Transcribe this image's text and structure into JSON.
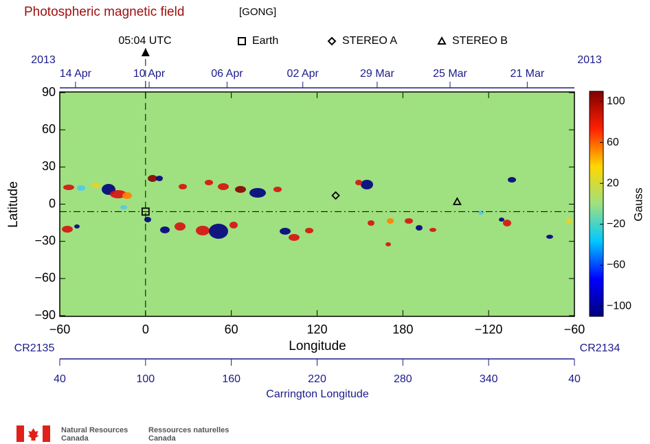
{
  "title": "Photospheric magnetic field",
  "source": "[GONG]",
  "chart_data": {
    "type": "heatmap",
    "x_label": "Longitude",
    "y_label": "Latitude",
    "time_label": "05:04 UTC",
    "xlim": [
      -60,
      300
    ],
    "xticks": [
      {
        "value": -60,
        "label": "−60"
      },
      0,
      60,
      120,
      180,
      {
        "value": 240,
        "label": "−120"
      },
      {
        "value": 300,
        "label": "−60"
      }
    ],
    "ylim": [
      -90,
      90
    ],
    "yticks": [
      90,
      60,
      30,
      0,
      {
        "value": -30,
        "label": "−30"
      },
      {
        "value": -60,
        "label": "−60"
      },
      {
        "value": -90,
        "label": "−90"
      }
    ],
    "date_axis": {
      "year_left": "2013",
      "year_right": "2013",
      "ticks": [
        {
          "value": -49,
          "label": "14 Apr"
        },
        {
          "value": 2.5,
          "label": "10 Apr"
        },
        {
          "value": 57,
          "label": "06 Apr"
        },
        {
          "value": 110,
          "label": "02 Apr"
        },
        {
          "value": 162,
          "label": "29 Mar"
        },
        {
          "value": 213,
          "label": "25 Mar"
        },
        {
          "value": 267,
          "label": "21 Mar"
        }
      ]
    },
    "carrington_axis": {
      "label": "Carrington Longitude",
      "left": "CR2135",
      "right": "CR2134",
      "lim": [
        40,
        400
      ],
      "ticks": [
        40,
        100,
        160,
        220,
        280,
        340,
        {
          "value": 400,
          "label": "40"
        }
      ]
    },
    "colorbar": {
      "label": "Gauss",
      "lim": [
        -110,
        110
      ],
      "ticks": [
        100,
        60,
        20,
        {
          "value": -20,
          "label": "−20"
        },
        {
          "value": -60,
          "label": "−60"
        },
        {
          "value": -100,
          "label": "−100"
        }
      ],
      "colors": [
        "#00007f",
        "#0000ff",
        "#00c8ff",
        "#9fe080",
        "#ffd700",
        "#ff2000",
        "#7f0000"
      ]
    },
    "series": [
      {
        "name": "Earth",
        "marker": "square",
        "x": [
          0
        ],
        "y": [
          -6
        ]
      },
      {
        "name": "STEREO A",
        "marker": "diamond",
        "x": [
          133
        ],
        "y": [
          7
        ]
      },
      {
        "name": "STEREO B",
        "marker": "triangle",
        "x": [
          218
        ],
        "y": [
          2
        ]
      }
    ]
  },
  "footer": {
    "en": [
      "Natural Resources",
      "Canada"
    ],
    "fr": [
      "Ressources naturelles",
      "Canada"
    ]
  }
}
